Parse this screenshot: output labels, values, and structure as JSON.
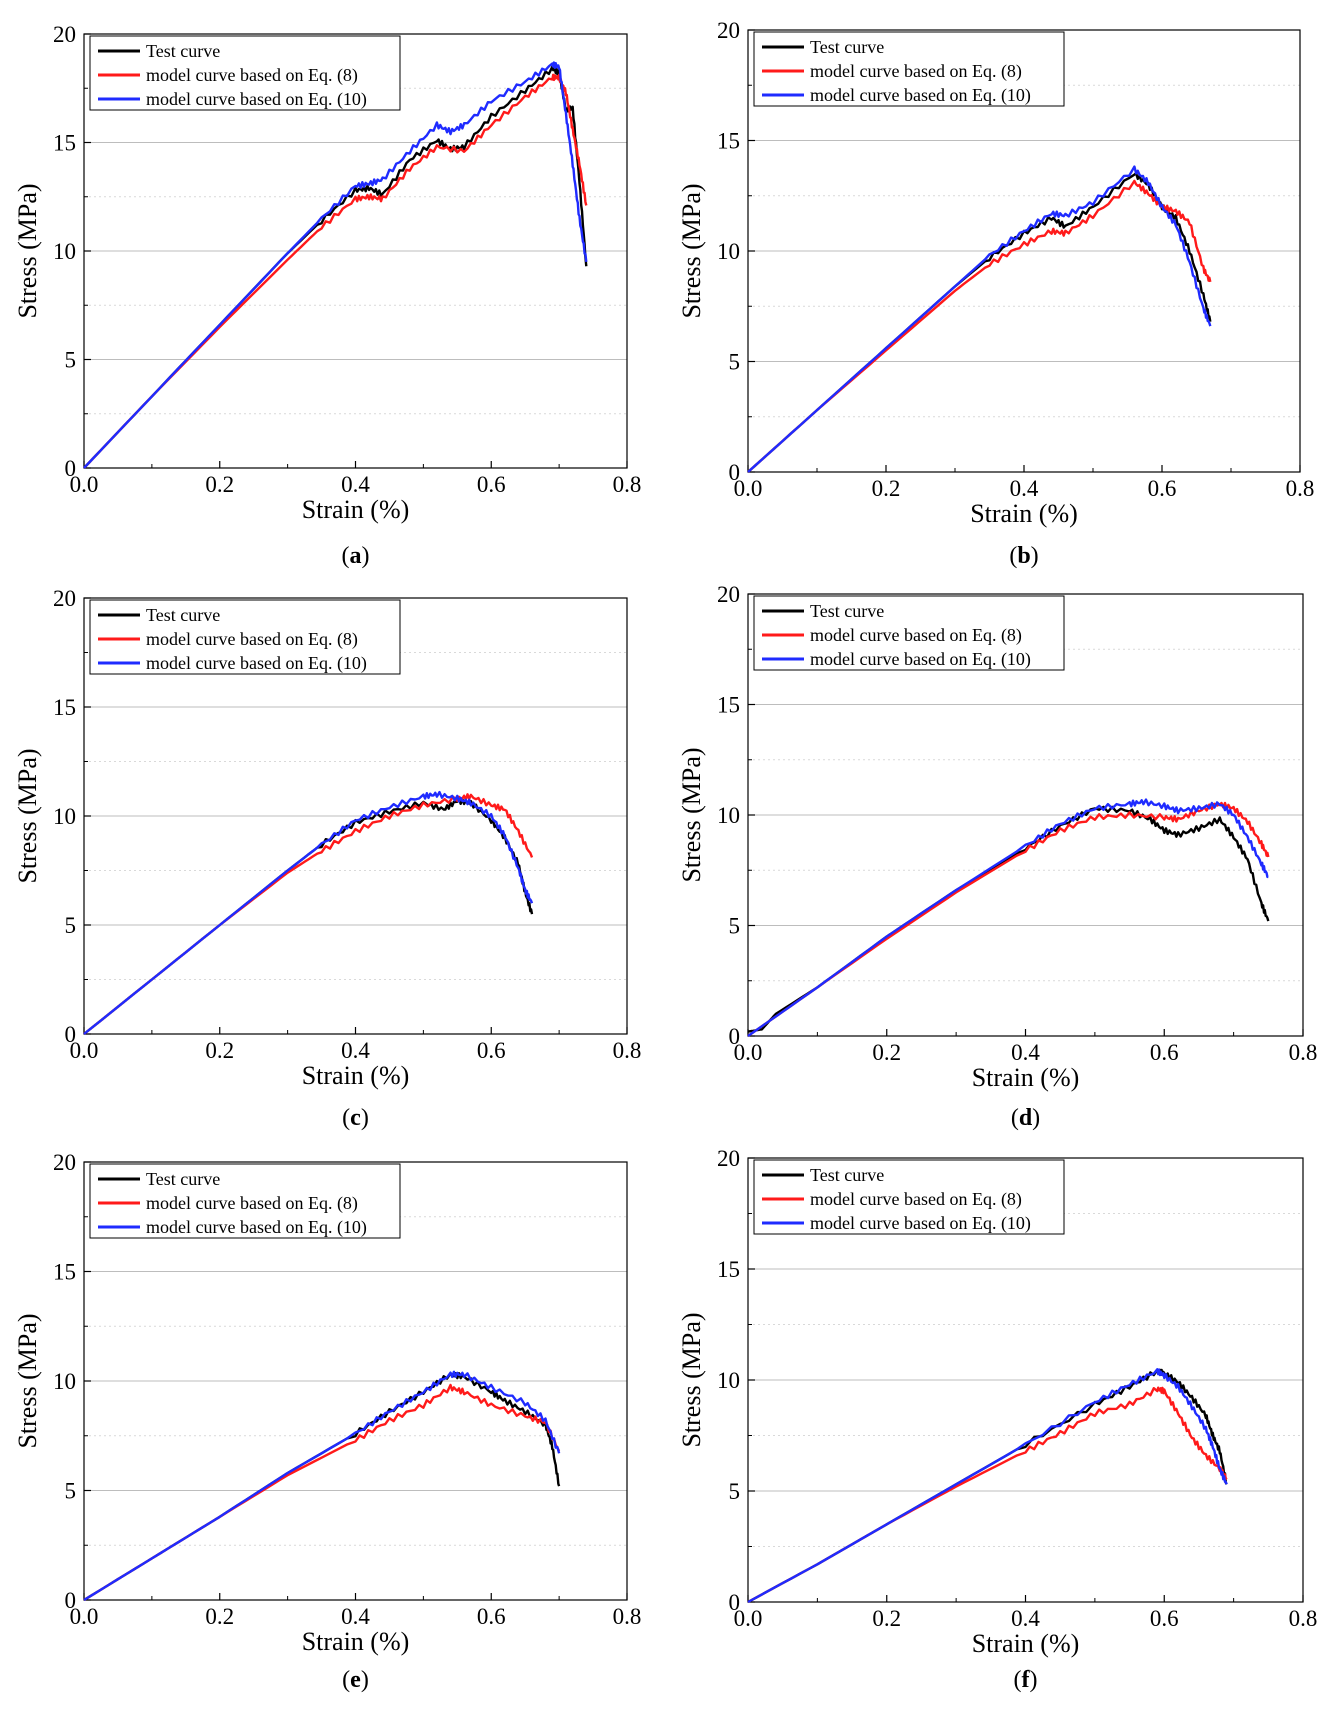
{
  "figure": {
    "colors": {
      "test": "#000000",
      "eq8": "#ff1a1a",
      "eq10": "#1f2bff",
      "grid": "#bdbdbd"
    },
    "panels": [
      {
        "id": "a",
        "caption_prefix": "(",
        "caption_letter": "a",
        "caption_suffix": ")"
      },
      {
        "id": "b",
        "caption_prefix": "(",
        "caption_letter": "b",
        "caption_suffix": ")"
      },
      {
        "id": "c",
        "caption_prefix": "(",
        "caption_letter": "c",
        "caption_suffix": ")"
      },
      {
        "id": "d",
        "caption_prefix": "(",
        "caption_letter": "d",
        "caption_suffix": ")"
      },
      {
        "id": "e",
        "caption_prefix": "(",
        "caption_letter": "e",
        "caption_suffix": ")"
      },
      {
        "id": "f",
        "caption_prefix": "(",
        "caption_letter": "f",
        "caption_suffix": ")"
      }
    ]
  },
  "chart_data": [
    {
      "panel": "a",
      "type": "line",
      "xlabel": "Strain (%)",
      "ylabel": "Stress (MPa)",
      "xlim": [
        0,
        0.8
      ],
      "ylim": [
        0,
        20
      ],
      "xticks": [
        "0.0",
        "0.2",
        "0.4",
        "0.6",
        "0.8"
      ],
      "yticks": [
        "0",
        "5",
        "10",
        "15",
        "20"
      ],
      "legend": [
        "Test curve",
        "model curve based on Eq. (8)",
        "model curve based on Eq. (10)"
      ],
      "series": [
        {
          "name": "Test curve",
          "x": [
            0,
            0.1,
            0.2,
            0.3,
            0.35,
            0.4,
            0.42,
            0.44,
            0.48,
            0.52,
            0.54,
            0.56,
            0.6,
            0.65,
            0.69,
            0.7,
            0.71,
            0.72,
            0.73,
            0.74
          ],
          "y": [
            0,
            3.3,
            6.6,
            9.9,
            11.4,
            12.8,
            12.9,
            12.6,
            14.2,
            15.1,
            14.7,
            14.8,
            16.2,
            17.4,
            18.4,
            18.2,
            16.5,
            16.6,
            13.2,
            9.3
          ]
        },
        {
          "name": "model curve based on Eq. (8)",
          "x": [
            0,
            0.1,
            0.2,
            0.3,
            0.35,
            0.4,
            0.42,
            0.44,
            0.48,
            0.52,
            0.56,
            0.6,
            0.65,
            0.69,
            0.7,
            0.71,
            0.72,
            0.73,
            0.74
          ],
          "y": [
            0,
            3.3,
            6.5,
            9.6,
            11.1,
            12.4,
            12.5,
            12.4,
            13.8,
            14.8,
            14.6,
            15.8,
            17.1,
            18.0,
            18.0,
            17.3,
            15.6,
            14.0,
            12.1
          ]
        },
        {
          "name": "model curve based on Eq. (10)",
          "x": [
            0,
            0.1,
            0.2,
            0.3,
            0.35,
            0.4,
            0.42,
            0.44,
            0.48,
            0.52,
            0.54,
            0.56,
            0.6,
            0.65,
            0.69,
            0.7,
            0.71,
            0.72,
            0.73,
            0.74
          ],
          "y": [
            0,
            3.3,
            6.6,
            9.9,
            11.5,
            13.0,
            13.1,
            13.3,
            14.6,
            15.8,
            15.5,
            15.8,
            16.9,
            17.8,
            18.6,
            18.5,
            16.3,
            14.0,
            11.5,
            9.5
          ]
        }
      ]
    },
    {
      "panel": "b",
      "type": "line",
      "xlabel": "Strain (%)",
      "ylabel": "Stress (MPa)",
      "xlim": [
        0,
        0.8
      ],
      "ylim": [
        0,
        20
      ],
      "xticks": [
        "0.0",
        "0.2",
        "0.4",
        "0.6",
        "0.8"
      ],
      "yticks": [
        "0",
        "5",
        "10",
        "15",
        "20"
      ],
      "legend": [
        "Test curve",
        "model curve based on Eq. (8)",
        "model curve based on Eq. (10)"
      ],
      "series": [
        {
          "name": "Test curve",
          "x": [
            0,
            0.1,
            0.2,
            0.3,
            0.35,
            0.4,
            0.44,
            0.46,
            0.5,
            0.56,
            0.58,
            0.6,
            0.62,
            0.64,
            0.66,
            0.67
          ],
          "y": [
            0,
            2.8,
            5.6,
            8.4,
            9.7,
            10.8,
            11.5,
            11.1,
            12.0,
            13.5,
            13.0,
            12.0,
            11.5,
            10.0,
            8.0,
            6.8
          ]
        },
        {
          "name": "model curve based on Eq. (8)",
          "x": [
            0,
            0.1,
            0.2,
            0.3,
            0.35,
            0.4,
            0.44,
            0.46,
            0.5,
            0.56,
            0.58,
            0.6,
            0.62,
            0.64,
            0.66,
            0.67
          ],
          "y": [
            0,
            2.8,
            5.5,
            8.2,
            9.4,
            10.3,
            10.9,
            10.8,
            11.6,
            13.1,
            12.6,
            12.0,
            11.8,
            11.3,
            9.2,
            8.6
          ]
        },
        {
          "name": "model curve based on Eq. (10)",
          "x": [
            0,
            0.1,
            0.2,
            0.3,
            0.35,
            0.4,
            0.44,
            0.46,
            0.5,
            0.56,
            0.58,
            0.6,
            0.62,
            0.64,
            0.66,
            0.67
          ],
          "y": [
            0,
            2.8,
            5.6,
            8.4,
            9.8,
            10.9,
            11.7,
            11.6,
            12.2,
            13.7,
            13.1,
            12.0,
            11.2,
            9.5,
            7.4,
            6.6
          ]
        }
      ]
    },
    {
      "panel": "c",
      "type": "line",
      "xlabel": "Strain (%)",
      "ylabel": "Stress (MPa)",
      "xlim": [
        0,
        0.8
      ],
      "ylim": [
        0,
        20
      ],
      "xticks": [
        "0.0",
        "0.2",
        "0.4",
        "0.6",
        "0.8"
      ],
      "yticks": [
        "0",
        "5",
        "10",
        "15",
        "20"
      ],
      "legend": [
        "Test curve",
        "model curve based on Eq. (8)",
        "model curve based on Eq. (10)"
      ],
      "series": [
        {
          "name": "Test curve",
          "x": [
            0,
            0.1,
            0.2,
            0.3,
            0.35,
            0.4,
            0.45,
            0.5,
            0.53,
            0.55,
            0.57,
            0.6,
            0.62,
            0.64,
            0.65,
            0.66
          ],
          "y": [
            0,
            2.5,
            5.0,
            7.5,
            8.7,
            9.7,
            10.2,
            10.6,
            10.3,
            10.7,
            10.6,
            9.8,
            9.0,
            7.8,
            6.5,
            5.5
          ]
        },
        {
          "name": "model curve based on Eq. (8)",
          "x": [
            0,
            0.1,
            0.2,
            0.3,
            0.35,
            0.4,
            0.45,
            0.5,
            0.55,
            0.57,
            0.6,
            0.62,
            0.64,
            0.66
          ],
          "y": [
            0,
            2.5,
            5.0,
            7.4,
            8.4,
            9.3,
            10.0,
            10.5,
            10.8,
            10.9,
            10.5,
            10.3,
            9.3,
            8.1
          ]
        },
        {
          "name": "model curve based on Eq. (10)",
          "x": [
            0,
            0.1,
            0.2,
            0.3,
            0.35,
            0.4,
            0.45,
            0.5,
            0.52,
            0.55,
            0.57,
            0.6,
            0.62,
            0.64,
            0.65,
            0.66
          ],
          "y": [
            0,
            2.5,
            5.0,
            7.5,
            8.7,
            9.8,
            10.4,
            10.9,
            11.0,
            10.8,
            10.6,
            10.0,
            9.1,
            7.6,
            6.6,
            6.0
          ]
        }
      ]
    },
    {
      "panel": "d",
      "type": "line",
      "xlabel": "Strain (%)",
      "ylabel": "Stress (MPa)",
      "xlim": [
        0,
        0.8
      ],
      "ylim": [
        0,
        20
      ],
      "xticks": [
        "0.0",
        "0.2",
        "0.4",
        "0.6",
        "0.8"
      ],
      "yticks": [
        "0",
        "5",
        "10",
        "15",
        "20"
      ],
      "legend": [
        "Test curve",
        "model curve based on Eq. (8)",
        "model curve based on Eq. (10)"
      ],
      "series": [
        {
          "name": "Test curve",
          "x": [
            0,
            0.02,
            0.04,
            0.1,
            0.2,
            0.3,
            0.4,
            0.45,
            0.5,
            0.55,
            0.58,
            0.6,
            0.62,
            0.65,
            0.68,
            0.7,
            0.72,
            0.74,
            0.75
          ],
          "y": [
            0.2,
            0.3,
            1.0,
            2.2,
            4.5,
            6.6,
            8.5,
            9.5,
            10.3,
            10.2,
            9.8,
            9.3,
            9.1,
            9.4,
            9.8,
            9.0,
            8.0,
            6.0,
            5.2
          ]
        },
        {
          "name": "model curve based on Eq. (8)",
          "x": [
            0,
            0.1,
            0.2,
            0.3,
            0.4,
            0.45,
            0.5,
            0.55,
            0.6,
            0.62,
            0.65,
            0.68,
            0.7,
            0.72,
            0.74,
            0.75
          ],
          "y": [
            0,
            2.2,
            4.4,
            6.5,
            8.4,
            9.3,
            9.9,
            10.0,
            9.9,
            9.8,
            10.2,
            10.5,
            10.3,
            9.7,
            8.7,
            8.1
          ]
        },
        {
          "name": "model curve based on Eq. (10)",
          "x": [
            0,
            0.1,
            0.2,
            0.3,
            0.4,
            0.45,
            0.5,
            0.55,
            0.57,
            0.6,
            0.62,
            0.65,
            0.68,
            0.7,
            0.72,
            0.74,
            0.75
          ],
          "y": [
            0,
            2.2,
            4.5,
            6.6,
            8.6,
            9.6,
            10.3,
            10.5,
            10.6,
            10.4,
            10.2,
            10.3,
            10.5,
            10.0,
            9.0,
            7.8,
            7.2
          ]
        }
      ]
    },
    {
      "panel": "e",
      "type": "line",
      "xlabel": "Strain (%)",
      "ylabel": "Stress (MPa)",
      "xlim": [
        0,
        0.8
      ],
      "ylim": [
        0,
        20
      ],
      "xticks": [
        "0.0",
        "0.2",
        "0.4",
        "0.6",
        "0.8"
      ],
      "yticks": [
        "0",
        "5",
        "10",
        "15",
        "20"
      ],
      "legend": [
        "Test curve",
        "model curve based on Eq. (8)",
        "model curve based on Eq. (10)"
      ],
      "series": [
        {
          "name": "Test curve",
          "x": [
            0,
            0.1,
            0.2,
            0.3,
            0.4,
            0.45,
            0.5,
            0.54,
            0.56,
            0.6,
            0.62,
            0.65,
            0.68,
            0.69,
            0.7
          ],
          "y": [
            0,
            1.9,
            3.8,
            5.8,
            7.6,
            8.6,
            9.5,
            10.3,
            10.2,
            9.5,
            9.1,
            8.6,
            8.0,
            7.0,
            5.2
          ]
        },
        {
          "name": "model curve based on Eq. (8)",
          "x": [
            0,
            0.1,
            0.2,
            0.3,
            0.4,
            0.45,
            0.5,
            0.54,
            0.56,
            0.6,
            0.65,
            0.68,
            0.7
          ],
          "y": [
            0,
            1.9,
            3.8,
            5.7,
            7.3,
            8.2,
            8.9,
            9.7,
            9.5,
            8.9,
            8.4,
            8.1,
            6.8
          ]
        },
        {
          "name": "model curve based on Eq. (10)",
          "x": [
            0,
            0.1,
            0.2,
            0.3,
            0.4,
            0.45,
            0.5,
            0.54,
            0.56,
            0.6,
            0.65,
            0.68,
            0.7
          ],
          "y": [
            0,
            1.9,
            3.8,
            5.8,
            7.6,
            8.6,
            9.5,
            10.3,
            10.3,
            9.7,
            9.0,
            8.2,
            6.7
          ]
        }
      ]
    },
    {
      "panel": "f",
      "type": "line",
      "xlabel": "Strain (%)",
      "ylabel": "Stress (MPa)",
      "xlim": [
        0,
        0.8
      ],
      "ylim": [
        0,
        20
      ],
      "xticks": [
        "0.0",
        "0.2",
        "0.4",
        "0.6",
        "0.8"
      ],
      "yticks": [
        "0",
        "5",
        "10",
        "15",
        "20"
      ],
      "legend": [
        "Test curve",
        "model curve based on Eq. (8)",
        "model curve based on Eq. (10)"
      ],
      "series": [
        {
          "name": "Test curve",
          "x": [
            0,
            0.1,
            0.2,
            0.3,
            0.4,
            0.5,
            0.55,
            0.59,
            0.6,
            0.62,
            0.64,
            0.66,
            0.67,
            0.68,
            0.69
          ],
          "y": [
            0,
            1.7,
            3.5,
            5.3,
            7.1,
            8.9,
            9.7,
            10.4,
            10.3,
            9.9,
            9.2,
            8.4,
            7.5,
            6.8,
            5.3
          ]
        },
        {
          "name": "model curve based on Eq. (8)",
          "x": [
            0,
            0.1,
            0.2,
            0.3,
            0.4,
            0.45,
            0.5,
            0.55,
            0.59,
            0.6,
            0.62,
            0.64,
            0.66,
            0.68,
            0.69
          ],
          "y": [
            0,
            1.7,
            3.5,
            5.2,
            6.8,
            7.6,
            8.5,
            8.9,
            9.6,
            9.5,
            8.5,
            7.4,
            6.6,
            6.0,
            5.6
          ]
        },
        {
          "name": "model curve based on Eq. (10)",
          "x": [
            0,
            0.1,
            0.2,
            0.3,
            0.4,
            0.5,
            0.55,
            0.59,
            0.6,
            0.62,
            0.64,
            0.66,
            0.67,
            0.68,
            0.69
          ],
          "y": [
            0,
            1.7,
            3.5,
            5.3,
            7.1,
            9.0,
            9.8,
            10.4,
            10.2,
            9.7,
            8.8,
            7.8,
            7.0,
            6.0,
            5.3
          ]
        }
      ]
    }
  ]
}
